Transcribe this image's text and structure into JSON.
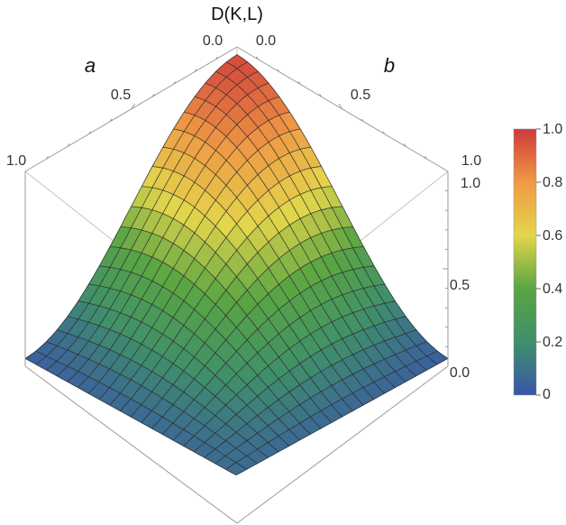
{
  "chart_data": {
    "type": "surface3d",
    "title": "",
    "zlabel": "D(K,L)",
    "xlabel": "a",
    "ylabel": "b",
    "x_ticks": [
      "0.0",
      "0.5",
      "1.0"
    ],
    "y_ticks": [
      "0.0",
      "0.5",
      "1.0"
    ],
    "z_ticks": [
      "0.0",
      "0.5",
      "1.0"
    ],
    "xlim": [
      0,
      1
    ],
    "ylim": [
      0,
      1
    ],
    "zlim": [
      0,
      1
    ],
    "surface": {
      "description_values": [
        {
          "a": 0.0,
          "b": 0.0,
          "z": 1.0
        },
        {
          "a": 0.5,
          "b": 0.5,
          "z": 0.6
        },
        {
          "a": 1.0,
          "b": 0.0,
          "z": 0.1
        },
        {
          "a": 0.0,
          "b": 1.0,
          "z": 0.1
        },
        {
          "a": 1.0,
          "b": 1.0,
          "z": 0.3
        }
      ],
      "mesh_lines": 20
    },
    "colorbar": {
      "ticks": [
        "0",
        "0.2",
        "0.4",
        "0.6",
        "0.8",
        "1.0"
      ],
      "range": [
        0,
        1
      ],
      "colors": [
        "#3a56a8",
        "#3f8f6b",
        "#5aa543",
        "#e3d64b",
        "#ef9a45",
        "#cf3a3b"
      ]
    }
  }
}
